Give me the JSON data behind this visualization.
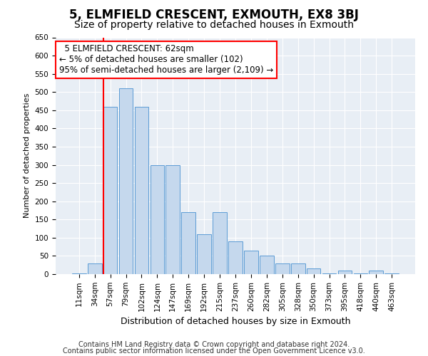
{
  "title": "5, ELMFIELD CRESCENT, EXMOUTH, EX8 3BJ",
  "subtitle": "Size of property relative to detached houses in Exmouth",
  "xlabel": "Distribution of detached houses by size in Exmouth",
  "ylabel": "Number of detached properties",
  "categories": [
    "11sqm",
    "34sqm",
    "57sqm",
    "79sqm",
    "102sqm",
    "124sqm",
    "147sqm",
    "169sqm",
    "192sqm",
    "215sqm",
    "237sqm",
    "260sqm",
    "282sqm",
    "305sqm",
    "328sqm",
    "350sqm",
    "373sqm",
    "395sqm",
    "418sqm",
    "440sqm",
    "463sqm"
  ],
  "values": [
    2,
    30,
    460,
    510,
    460,
    300,
    300,
    170,
    110,
    170,
    90,
    65,
    50,
    30,
    30,
    15,
    2,
    10,
    2,
    10,
    2
  ],
  "bar_color": "#c5d8ed",
  "bar_edge_color": "#5b9bd5",
  "red_line_index": 2,
  "ylim": [
    0,
    650
  ],
  "yticks": [
    0,
    50,
    100,
    150,
    200,
    250,
    300,
    350,
    400,
    450,
    500,
    550,
    600,
    650
  ],
  "annotation_line1": "  5 ELMFIELD CRESCENT: 62sqm",
  "annotation_line2": "← 5% of detached houses are smaller (102)",
  "annotation_line3": "95% of semi-detached houses are larger (2,109) →",
  "footer_line1": "Contains HM Land Registry data © Crown copyright and database right 2024.",
  "footer_line2": "Contains public sector information licensed under the Open Government Licence v3.0.",
  "plot_bg_color": "#e8eef5",
  "fig_bg_color": "#ffffff",
  "title_fontsize": 12,
  "subtitle_fontsize": 10,
  "annotation_fontsize": 8.5,
  "footer_fontsize": 7,
  "ylabel_fontsize": 8,
  "xlabel_fontsize": 9,
  "tick_fontsize": 7.5
}
